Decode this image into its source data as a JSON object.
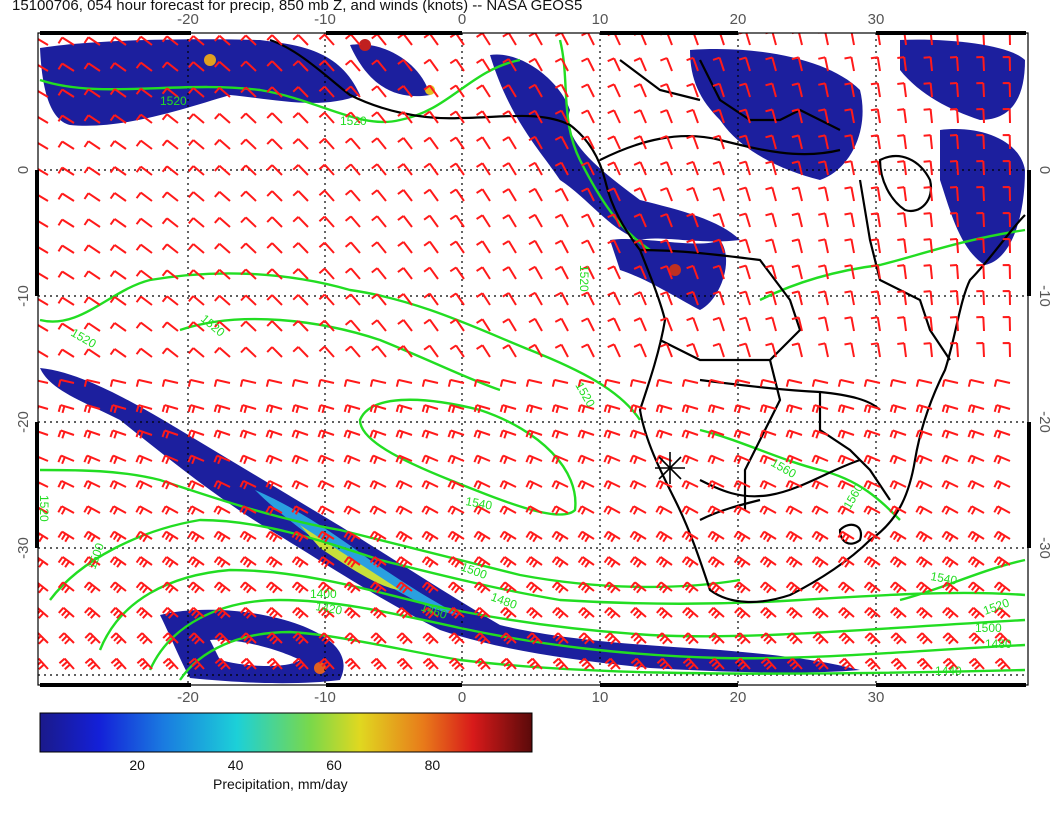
{
  "title": "15100706, 054 hour forecast for precip, 850 mb Z, and winds (knots) -- NASA GEOS5",
  "map": {
    "lon_range": [
      -30,
      40
    ],
    "lat_range": [
      -40,
      10
    ],
    "lon_ticks": [
      "-20",
      "-10",
      "0",
      "10",
      "20",
      "30"
    ],
    "lat_ticks": [
      "0",
      "-10",
      "-20",
      "-30"
    ],
    "colors": {
      "land": "#000000",
      "contour": "#22dd22",
      "wind": "#ff1a1a",
      "precip_low": "#1c1f9e"
    },
    "contour_labels": [
      "1520",
      "1520",
      "1520",
      "1520",
      "1520",
      "1520",
      "1540",
      "1560",
      "1560",
      "1520",
      "1540",
      "1500",
      "1480",
      "1460",
      "1420",
      "1400",
      "1500",
      "1520",
      "1500",
      "1480",
      "1440"
    ]
  },
  "colorbar": {
    "title": "Precipitation, mm/day",
    "ticks": [
      "20",
      "40",
      "60",
      "80"
    ],
    "tick_values": [
      20,
      40,
      60,
      80
    ],
    "range": [
      0,
      100
    ]
  }
}
